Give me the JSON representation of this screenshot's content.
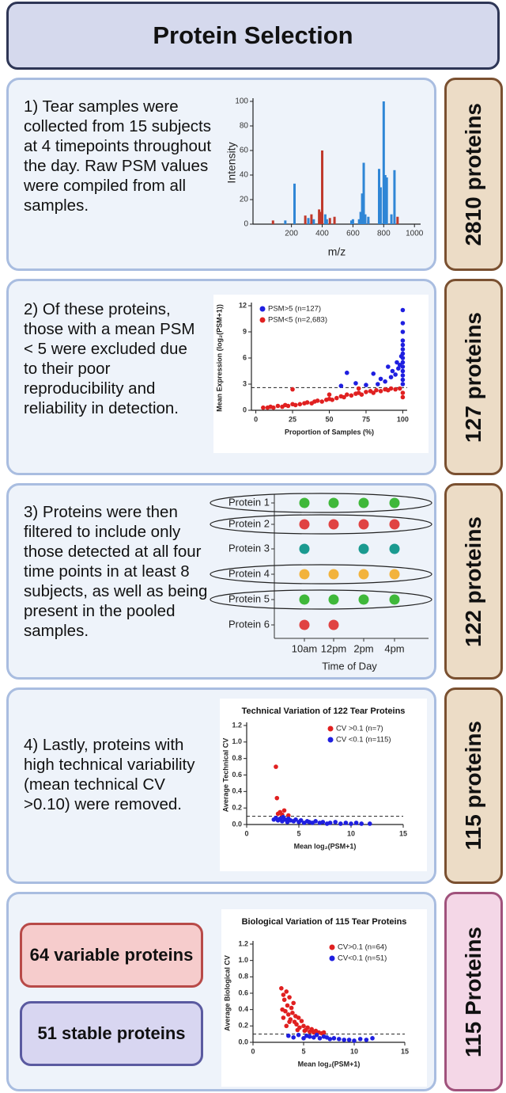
{
  "header": {
    "title": "Protein Selection"
  },
  "panels": [
    {
      "text": "1) Tear samples were collected from 15 subjects at 4 timepoints throughout the day. Raw PSM values were compiled from all samples.",
      "badge": "2810 proteins",
      "figure": {
        "type": "spectrum",
        "xlabel": "m/z",
        "ylabel": "Intensity",
        "xlim": [
          -50,
          1040
        ],
        "ylim": [
          0,
          100
        ],
        "xticks": [
          200,
          400,
          600,
          800,
          1000
        ],
        "yticks": [
          0,
          20,
          40,
          60,
          80,
          100
        ],
        "series": [
          {
            "color": "#c0392b",
            "x": [
              80,
              290,
              330,
              380,
              392,
              400,
              450,
              480,
              700,
              890
            ],
            "values": [
              3,
              7,
              8,
              12,
              10,
              60,
              5,
              6,
              3,
              6
            ]
          },
          {
            "color": "#2f86d6",
            "x": [
              160,
              220,
              310,
              345,
              420,
              430,
              590,
              600,
              640,
              650,
              660,
              670,
              680,
              700,
              770,
              780,
              800,
              810,
              820,
              850,
              870
            ],
            "values": [
              3,
              33,
              5,
              4,
              8,
              4,
              3,
              4,
              4,
              10,
              25,
              50,
              8,
              6,
              45,
              30,
              100,
              40,
              38,
              8,
              44
            ]
          }
        ]
      }
    },
    {
      "text": "2) Of these proteins, those with a mean PSM < 5 were excluded due to their poor reproducibility and reliability in detection.",
      "badge": "127 proteins",
      "figure": {
        "type": "scatter",
        "xlabel": "Proportion of Samples (%)",
        "ylabel": "Mean Expression (log₂(PSM+1))",
        "xlim": [
          -3,
          103
        ],
        "ylim": [
          0,
          12
        ],
        "xticks": [
          0,
          25,
          50,
          75,
          100
        ],
        "yticks": [
          0,
          3,
          6,
          9,
          12
        ],
        "threshold": 2.6,
        "legend": "upper left",
        "series": [
          {
            "name": "PSM>5 (n=127)",
            "color": "#1f1fe0",
            "x": [
              62,
              75,
              80,
              83,
              85,
              88,
              90,
              92,
              93,
              95,
              96,
              97,
              98,
              99,
              100,
              100,
              100,
              100,
              100,
              100,
              100,
              100,
              100,
              100,
              100,
              100,
              100,
              100,
              68,
              58
            ],
            "values": [
              4.3,
              2.9,
              4.2,
              3.0,
              3.6,
              3.3,
              5.0,
              3.8,
              4.5,
              4.1,
              5.5,
              4.8,
              5.2,
              6.2,
              3.0,
              3.5,
              4.0,
              4.5,
              5.0,
              5.5,
              6.0,
              6.5,
              7.0,
              7.5,
              8.0,
              9.0,
              10.0,
              11.5,
              3.1,
              2.8
            ]
          },
          {
            "name": "PSM<5 (n=2,683)",
            "color": "#e02020",
            "x": [
              5,
              8,
              10,
              12,
              15,
              18,
              20,
              22,
              25,
              27,
              30,
              33,
              35,
              38,
              40,
              42,
              45,
              48,
              50,
              52,
              55,
              58,
              60,
              62,
              65,
              68,
              70,
              72,
              75,
              78,
              80,
              82,
              85,
              88,
              90,
              92,
              95,
              98,
              100,
              100,
              25,
              50,
              70
            ],
            "values": [
              0.3,
              0.3,
              0.4,
              0.3,
              0.5,
              0.4,
              0.6,
              0.5,
              0.7,
              0.6,
              0.7,
              0.8,
              0.9,
              0.8,
              1.0,
              1.1,
              1.0,
              1.2,
              1.3,
              1.2,
              1.4,
              1.6,
              1.5,
              1.8,
              1.7,
              1.9,
              2.0,
              1.8,
              2.1,
              2.2,
              2.0,
              2.3,
              2.2,
              2.4,
              2.3,
              2.5,
              2.4,
              2.5,
              2.0,
              1.5,
              2.4,
              1.8,
              2.5
            ]
          }
        ]
      }
    },
    {
      "text": "3) Proteins were then filtered to include only those detected at all four time points in at least 8 subjects, as well as being present in the pooled samples.",
      "badge": "122 proteins",
      "figure": {
        "type": "dotgrid",
        "xlabel": "Time of Day",
        "columns": [
          "10am",
          "12pm",
          "2pm",
          "4pm"
        ],
        "rows": [
          {
            "label": "Protein 1",
            "color": "#3fb83a",
            "present": [
              true,
              true,
              true,
              true
            ],
            "circled": true
          },
          {
            "label": "Protein 2",
            "color": "#e04343",
            "present": [
              true,
              true,
              true,
              true
            ],
            "circled": true
          },
          {
            "label": "Protein 3",
            "color": "#1a9a90",
            "present": [
              true,
              false,
              true,
              true
            ],
            "circled": false
          },
          {
            "label": "Protein 4",
            "color": "#f2b33d",
            "present": [
              true,
              true,
              true,
              true
            ],
            "circled": true
          },
          {
            "label": "Protein 5",
            "color": "#3fb83a",
            "present": [
              true,
              true,
              true,
              true
            ],
            "circled": true
          },
          {
            "label": "Protein 6",
            "color": "#e04343",
            "present": [
              true,
              true,
              false,
              false
            ],
            "circled": false
          }
        ]
      }
    },
    {
      "text": "4) Lastly, proteins with high technical variability (mean technical CV >0.10) were removed.",
      "badge": "115 proteins",
      "figure": {
        "type": "scatter",
        "title": "Technical Variation of 122 Tear Proteins",
        "xlabel": "Mean log₂(PSM+1)",
        "ylabel": "Average Technical CV",
        "xlim": [
          0,
          15
        ],
        "ylim": [
          0,
          1.2
        ],
        "xticks": [
          0,
          5,
          10,
          15
        ],
        "yticks": [
          {
            "value": 0,
            "label": "0.0"
          },
          0.2,
          0.4,
          0.6,
          0.8,
          {
            "value": 1,
            "label": "1.0"
          },
          1.2
        ],
        "threshold": 0.1,
        "legend": "upper right",
        "series": [
          {
            "name": "CV >0.1 (n=7)",
            "color": "#e02020",
            "x": [
              2.8,
              2.9,
              3.0,
              3.2,
              3.4,
              3.6,
              4.0
            ],
            "values": [
              0.7,
              0.32,
              0.13,
              0.15,
              0.12,
              0.17,
              0.11
            ]
          },
          {
            "name": "CV <0.1 (n=115)",
            "color": "#1f1fe0",
            "x": [
              2.6,
              2.8,
              3.0,
              3.2,
              3.4,
              3.5,
              3.7,
              3.9,
              4.0,
              4.2,
              4.5,
              4.7,
              5.0,
              5.2,
              5.5,
              5.8,
              6.0,
              6.3,
              6.6,
              7.0,
              7.3,
              7.7,
              8.0,
              8.5,
              9.0,
              9.5,
              10.0,
              10.5,
              11.0,
              11.8
            ],
            "values": [
              0.06,
              0.08,
              0.05,
              0.07,
              0.04,
              0.09,
              0.06,
              0.03,
              0.07,
              0.05,
              0.04,
              0.06,
              0.03,
              0.05,
              0.02,
              0.04,
              0.03,
              0.02,
              0.04,
              0.02,
              0.03,
              0.01,
              0.02,
              0.03,
              0.01,
              0.02,
              0.01,
              0.02,
              0.01,
              0.01
            ]
          }
        ]
      }
    },
    {
      "boxes": [
        "64 variable proteins",
        "51 stable proteins"
      ],
      "badge": "115 Proteins",
      "figure": {
        "type": "scatter",
        "title": "Biological Variation of 115 Tear Proteins",
        "xlabel": "Mean log₂(PSM+1)",
        "ylabel": "Average Biological CV",
        "xlim": [
          0,
          15
        ],
        "ylim": [
          0,
          1.2
        ],
        "xticks": [
          0,
          5,
          10,
          15
        ],
        "yticks": [
          {
            "value": 0,
            "label": "0.0"
          },
          0.2,
          0.4,
          0.6,
          0.8,
          {
            "value": 1,
            "label": "1.0"
          },
          1.2
        ],
        "threshold": 0.1,
        "legend": "upper right",
        "series": [
          {
            "name": "CV>0.1 (n=64)",
            "color": "#e02020",
            "x": [
              2.8,
              2.9,
              3.0,
              3.0,
              3.1,
              3.2,
              3.3,
              3.4,
              3.5,
              3.6,
              3.7,
              3.8,
              3.9,
              4.0,
              4.1,
              4.2,
              4.3,
              4.5,
              4.6,
              4.8,
              5.0,
              5.2,
              5.4,
              5.6,
              5.8,
              6.0,
              6.2,
              6.5,
              6.8,
              7.0,
              3.3,
              3.6,
              4.4,
              5.1
            ],
            "values": [
              0.66,
              0.4,
              0.58,
              0.3,
              0.52,
              0.38,
              0.62,
              0.45,
              0.34,
              0.55,
              0.28,
              0.42,
              0.36,
              0.48,
              0.25,
              0.32,
              0.22,
              0.3,
              0.18,
              0.26,
              0.2,
              0.15,
              0.18,
              0.13,
              0.16,
              0.12,
              0.14,
              0.12,
              0.11,
              0.12,
              0.2,
              0.25,
              0.15,
              0.14
            ]
          },
          {
            "name": "CV<0.1 (n=51)",
            "color": "#1f1fe0",
            "x": [
              3.5,
              4.0,
              4.5,
              5.0,
              5.3,
              5.6,
              6.0,
              6.3,
              6.6,
              7.0,
              7.3,
              7.6,
              8.0,
              8.5,
              9.0,
              9.5,
              10.0,
              10.6,
              11.2,
              11.8
            ],
            "values": [
              0.08,
              0.06,
              0.09,
              0.05,
              0.08,
              0.07,
              0.06,
              0.09,
              0.05,
              0.07,
              0.06,
              0.04,
              0.05,
              0.04,
              0.03,
              0.03,
              0.02,
              0.04,
              0.03,
              0.05
            ]
          }
        ]
      }
    }
  ]
}
